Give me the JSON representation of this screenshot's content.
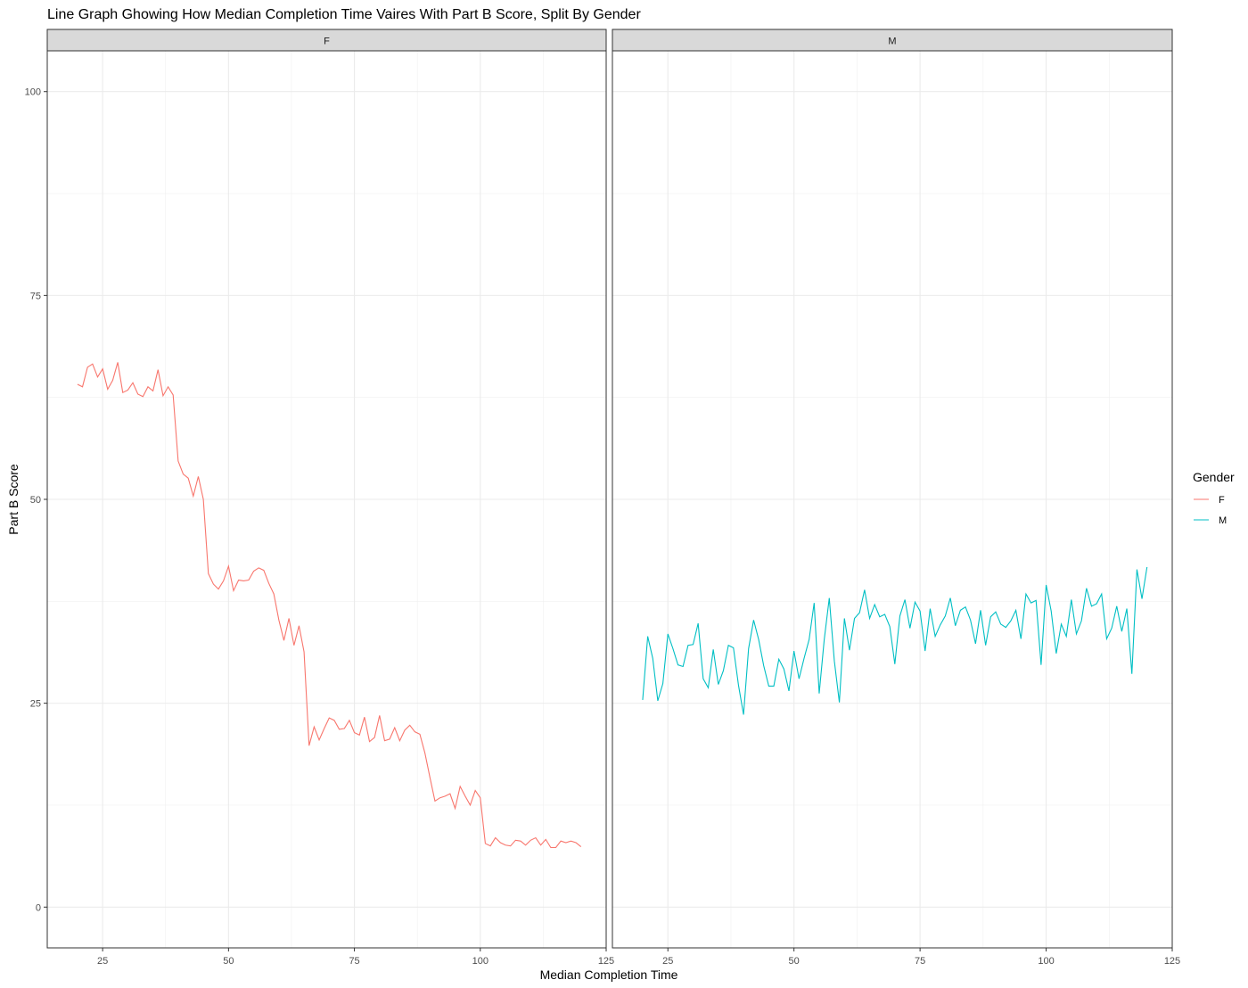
{
  "chart_data": {
    "type": "line",
    "title": "Line Graph Ghowing How Median Completion Time Vaires With Part B Score, Split By Gender",
    "xlabel": "Median Completion Time",
    "ylabel": "Part B Score",
    "xlim": [
      14,
      125
    ],
    "ylim": [
      -5,
      105
    ],
    "x_ticks": [
      25,
      50,
      75,
      100,
      125
    ],
    "y_ticks": [
      0,
      25,
      50,
      75,
      100
    ],
    "grid": true,
    "legend": {
      "title": "Gender",
      "position": "right",
      "entries": [
        {
          "label": "F",
          "color": "#F8766D"
        },
        {
          "label": "M",
          "color": "#00BFC4"
        }
      ]
    },
    "facets": [
      "F",
      "M"
    ],
    "series": [
      {
        "name": "F",
        "facet": "F",
        "color": "#F8766D",
        "x": [
          20,
          21,
          22,
          23,
          24,
          25,
          26,
          27,
          28,
          29,
          30,
          31,
          32,
          33,
          34,
          35,
          36,
          37,
          38,
          39,
          40,
          41,
          42,
          43,
          44,
          45,
          46,
          47,
          48,
          49,
          50,
          51,
          52,
          53,
          54,
          55,
          56,
          57,
          58,
          59,
          60,
          61,
          62,
          63,
          64,
          65,
          66,
          67,
          68,
          69,
          70,
          71,
          72,
          73,
          74,
          75,
          76,
          77,
          78,
          79,
          80,
          81,
          82,
          83,
          84,
          85,
          86,
          87,
          88,
          89,
          90,
          91,
          92,
          93,
          94,
          95,
          96,
          97,
          98,
          99,
          100,
          101,
          102,
          103,
          104,
          105,
          106,
          107,
          108,
          109,
          110,
          111,
          112,
          113,
          114,
          115,
          116,
          117,
          118,
          119,
          120
        ],
        "y": [
          64.1,
          63.8,
          66.2,
          66.6,
          65.0,
          66.0,
          63.5,
          64.6,
          66.8,
          63.1,
          63.4,
          64.3,
          62.9,
          62.6,
          63.8,
          63.3,
          65.9,
          62.7,
          63.8,
          62.8,
          54.7,
          53.1,
          52.6,
          50.4,
          52.8,
          50.0,
          40.9,
          39.6,
          39.0,
          40.0,
          41.8,
          38.8,
          40.1,
          40.0,
          40.1,
          41.2,
          41.6,
          41.3,
          39.7,
          38.4,
          35.2,
          32.7,
          35.4,
          32.1,
          34.5,
          31.3,
          19.8,
          22.1,
          20.5,
          21.9,
          23.2,
          22.9,
          21.8,
          21.9,
          22.9,
          21.4,
          21.1,
          23.3,
          20.3,
          20.8,
          23.5,
          20.4,
          20.6,
          22.0,
          20.4,
          21.7,
          22.3,
          21.5,
          21.2,
          18.9,
          15.9,
          13.0,
          13.4,
          13.6,
          13.9,
          12.1,
          14.8,
          13.6,
          12.5,
          14.3,
          13.4,
          7.8,
          7.5,
          8.5,
          7.9,
          7.6,
          7.5,
          8.2,
          8.1,
          7.6,
          8.2,
          8.5,
          7.6,
          8.3,
          7.3,
          7.3,
          8.1,
          7.9,
          8.1,
          7.9,
          7.4
        ]
      },
      {
        "name": "M",
        "facet": "M",
        "color": "#00BFC4",
        "x": [
          20,
          21,
          22,
          23,
          24,
          25,
          26,
          27,
          28,
          29,
          30,
          31,
          32,
          33,
          34,
          35,
          36,
          37,
          38,
          39,
          40,
          41,
          42,
          43,
          44,
          45,
          46,
          47,
          48,
          49,
          50,
          51,
          52,
          53,
          54,
          55,
          56,
          57,
          58,
          59,
          60,
          61,
          62,
          63,
          64,
          65,
          66,
          67,
          68,
          69,
          70,
          71,
          72,
          73,
          74,
          75,
          76,
          77,
          78,
          79,
          80,
          81,
          82,
          83,
          84,
          85,
          86,
          87,
          88,
          89,
          90,
          91,
          92,
          93,
          94,
          95,
          96,
          97,
          98,
          99,
          100,
          101,
          102,
          103,
          104,
          105,
          106,
          107,
          108,
          109,
          110,
          111,
          112,
          113,
          114,
          115,
          116,
          117,
          118,
          119,
          120
        ],
        "y": [
          25.4,
          33.2,
          30.5,
          25.3,
          27.4,
          33.5,
          31.7,
          29.7,
          29.5,
          32.1,
          32.2,
          34.8,
          28.0,
          26.9,
          31.6,
          27.3,
          29.0,
          32.1,
          31.8,
          27.2,
          23.6,
          31.7,
          35.2,
          32.8,
          29.6,
          27.1,
          27.1,
          30.4,
          29.2,
          26.5,
          31.4,
          28.0,
          30.5,
          32.8,
          37.3,
          26.2,
          32.8,
          37.9,
          30.2,
          25.1,
          35.4,
          31.5,
          35.4,
          36.1,
          38.9,
          35.4,
          37.1,
          35.6,
          35.9,
          34.4,
          29.8,
          35.7,
          37.7,
          34.2,
          37.4,
          36.3,
          31.4,
          36.6,
          33.2,
          34.6,
          35.7,
          37.9,
          34.5,
          36.4,
          36.8,
          35.2,
          32.3,
          36.4,
          32.1,
          35.6,
          36.2,
          34.7,
          34.3,
          35.1,
          36.4,
          32.9,
          38.4,
          37.3,
          37.6,
          29.7,
          39.5,
          36.3,
          31.1,
          34.7,
          33.2,
          37.7,
          33.5,
          35.1,
          39.1,
          36.9,
          37.2,
          38.4,
          32.9,
          34.2,
          36.9,
          33.8,
          36.6,
          28.6,
          41.4,
          37.8,
          41.7
        ]
      }
    ]
  }
}
